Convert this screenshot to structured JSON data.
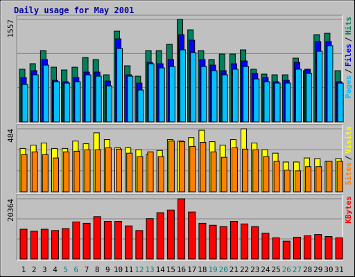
{
  "chart_data": [
    {
      "type": "bar",
      "title": "Daily usage for May 2001",
      "legend_separator": "/",
      "series": [
        {
          "name": "Hits",
          "color": "#00805c",
          "values": [
            800,
            884,
            1083,
            831,
            789,
            831,
            978,
            947,
            715,
            1378,
            852,
            694,
            1083,
            1083,
            1178,
            1557,
            1399,
            1083,
            947,
            1031,
            1031,
            1094,
            800,
            726,
            715,
            715,
            968,
            778,
            1325,
            1346,
            778
          ]
        },
        {
          "name": "Files",
          "color": "#0000ff",
          "values": [
            673,
            778,
            947,
            631,
            610,
            673,
            757,
            757,
            620,
            1262,
            715,
            589,
            904,
            883,
            947,
            1325,
            1241,
            947,
            862,
            778,
            883,
            925,
            736,
            673,
            610,
            631,
            904,
            800,
            1220,
            1220,
            610
          ]
        },
        {
          "name": "Pages",
          "color": "#00c0ff",
          "values": [
            568,
            715,
            862,
            610,
            589,
            610,
            715,
            694,
            547,
            1115,
            694,
            484,
            883,
            820,
            841,
            1094,
            1052,
            841,
            778,
            715,
            800,
            841,
            652,
            610,
            589,
            589,
            800,
            736,
            1073,
            1157,
            589
          ]
        }
      ],
      "ylim": [
        0,
        1557
      ],
      "yticks": [
        1557
      ],
      "ygrid": [
        519,
        1038
      ]
    },
    {
      "type": "bar",
      "legend_separator": "/",
      "series": [
        {
          "name": "Visits",
          "color": "#ffff00",
          "values": [
            333,
            359,
            375,
            333,
            333,
            390,
            369,
            453,
            401,
            338,
            338,
            323,
            286,
            318,
            401,
            390,
            416,
            473,
            385,
            359,
            401,
            484,
            375,
            323,
            297,
            229,
            229,
            260,
            255,
            234,
            255
          ]
        },
        {
          "name": "Sites",
          "color": "#ff8000",
          "values": [
            286,
            307,
            286,
            260,
            307,
            312,
            323,
            323,
            338,
            328,
            297,
            270,
            307,
            270,
            390,
            385,
            349,
            380,
            307,
            265,
            338,
            328,
            323,
            270,
            234,
            167,
            161,
            193,
            193,
            234,
            234
          ]
        }
      ],
      "ylim": [
        0,
        484
      ],
      "yticks": [
        484
      ],
      "ygrid": [
        161,
        323
      ]
    },
    {
      "type": "bar",
      "series": [
        {
          "name": "KBytes",
          "color": "#ff0000",
          "values": [
            10070,
            9400,
            10070,
            9620,
            10290,
            12530,
            12080,
            14320,
            12750,
            12750,
            11190,
            9620,
            13650,
            15660,
            16560,
            20364,
            15890,
            12080,
            11410,
            10960,
            12750,
            11860,
            10960,
            8730,
            7160,
            6040,
            7380,
            7830,
            8280,
            7610,
            7160
          ]
        }
      ],
      "ylim": [
        0,
        20364
      ],
      "yticks": [
        20364
      ],
      "ygrid": [
        6788,
        13576
      ],
      "categories": [
        "1",
        "2",
        "3",
        "4",
        "5",
        "6",
        "7",
        "8",
        "9",
        "10",
        "11",
        "12",
        "13",
        "14",
        "15",
        "16",
        "17",
        "18",
        "19",
        "20",
        "21",
        "22",
        "23",
        "24",
        "25",
        "26",
        "27",
        "28",
        "29",
        "30",
        "31"
      ],
      "category_colors": [
        "#000000",
        "#000000",
        "#000000",
        "#000000",
        "#008080",
        "#008080",
        "#000000",
        "#000000",
        "#000000",
        "#000000",
        "#000000",
        "#008080",
        "#008080",
        "#000000",
        "#000000",
        "#000000",
        "#000000",
        "#000000",
        "#008080",
        "#008080",
        "#000000",
        "#000000",
        "#000000",
        "#000000",
        "#000000",
        "#008080",
        "#008080",
        "#000000",
        "#000000",
        "#000000",
        "#000000"
      ]
    }
  ]
}
